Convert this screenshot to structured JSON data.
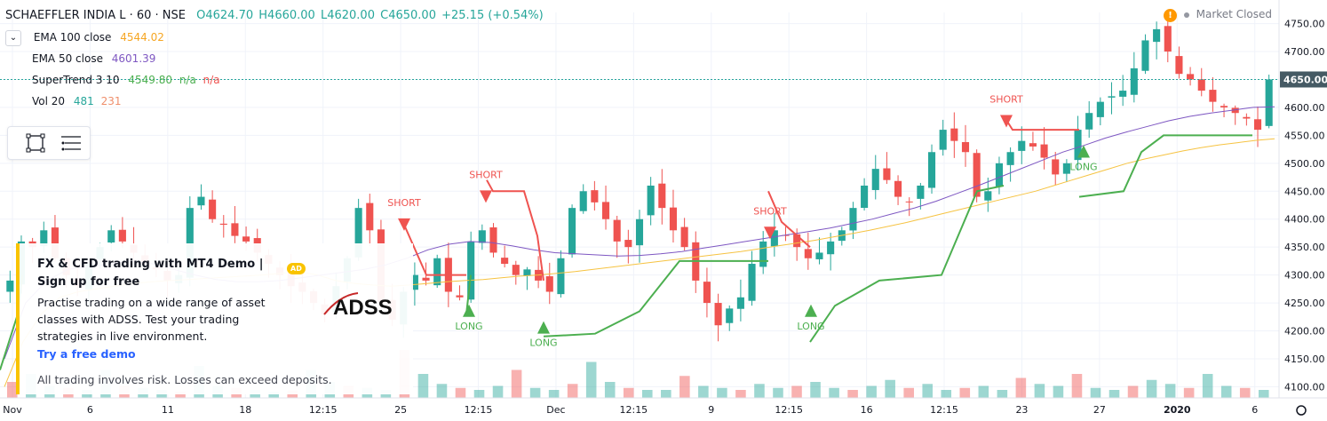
{
  "header": {
    "symbol": "SCHAEFFLER INDIA L · 60 · NSE",
    "open": "O4624.70",
    "high": "H4660.00",
    "low": "L4620.00",
    "close": "C4650.00",
    "change": "+25.15 (+0.54%)",
    "market_status": "Market Closed"
  },
  "indicators": [
    {
      "label": "EMA 100 close",
      "values": [
        "4544.02"
      ],
      "colors": [
        "#f6a623"
      ]
    },
    {
      "label": "EMA 50 close",
      "values": [
        "4601.39"
      ],
      "colors": [
        "#7e57c2"
      ]
    },
    {
      "label": "SuperTrend 3 10",
      "values": [
        "4549.80",
        "n/a",
        "n/a"
      ],
      "colors": [
        "#4caf50",
        "#4caf50",
        "#ef5350"
      ]
    },
    {
      "label": "Vol 20",
      "values": [
        "481",
        "231"
      ],
      "colors": [
        "#26a69a",
        "#ef8f6c"
      ]
    }
  ],
  "ad": {
    "headline": "FX & CFD trading with MT4 Demo | Sign up for free",
    "body": "Practise trading on a wide range of asset classes with ADSS. Test your trading strategies in live environment.",
    "cta": "Try a free demo",
    "disclaimer": "All trading involves risk. Losses can exceed deposits.",
    "badge": "AD",
    "brand": "ADSS"
  },
  "colors": {
    "up": "#26a69a",
    "down": "#ef5350",
    "ema100": "#f6c342",
    "ema50": "#7e57c2",
    "st_up": "#4caf50",
    "st_down": "#ef5350",
    "price_tag": "#455a64"
  },
  "chart_data": {
    "type": "candlestick",
    "y_ticks": [
      4100,
      4150,
      4200,
      4250,
      4300,
      4350,
      4400,
      4450,
      4500,
      4550,
      4600,
      4650,
      4700,
      4750
    ],
    "ylim": [
      4080,
      4770
    ],
    "x_ticks": [
      "Nov",
      "6",
      "11",
      "18",
      "12:15",
      "25",
      "12:15",
      "Dec",
      "12:15",
      "9",
      "12:15",
      "16",
      "12:15",
      "23",
      "27",
      "2020",
      "6"
    ],
    "last_price": "4650.00",
    "close_path": [
      4290,
      4360,
      4350,
      4380,
      4330,
      4300,
      4280,
      4320,
      4350,
      4380,
      4360,
      4340,
      4320,
      4310,
      4290,
      4300,
      4420,
      4440,
      4400,
      4390,
      4370,
      4360,
      4340,
      4320,
      4300,
      4280,
      4270,
      4250,
      4230,
      4280,
      4330,
      4420,
      4380,
      4250,
      4220,
      4270,
      4300,
      4290,
      4330,
      4270,
      4260,
      4360,
      4380,
      4340,
      4320,
      4300,
      4310,
      4290,
      4270,
      4330,
      4420,
      4450,
      4430,
      4400,
      4360,
      4350,
      4400,
      4460,
      4420,
      4380,
      4350,
      4290,
      4250,
      4210,
      4240,
      4260,
      4320,
      4360,
      4380,
      4370,
      4350,
      4330,
      4340,
      4360,
      4380,
      4420,
      4460,
      4490,
      4470,
      4440,
      4430,
      4460,
      4520,
      4560,
      4540,
      4520,
      4440,
      4450,
      4500,
      4520,
      4540,
      4530,
      4510,
      4480,
      4500,
      4560,
      4590,
      4610,
      4620,
      4630,
      4670,
      4720,
      4740,
      4700,
      4660,
      4650,
      4630,
      4610,
      4600,
      4590,
      4580,
      4560,
      4650
    ],
    "ema100_path": [
      4100,
      4180,
      4230,
      4260,
      4270,
      4275,
      4280,
      4285,
      4288,
      4290,
      4292,
      4294,
      4296,
      4298,
      4300,
      4303,
      4306,
      4300,
      4290,
      4285,
      4282,
      4280,
      4282,
      4285,
      4288,
      4290,
      4292,
      4295,
      4298,
      4300,
      4303,
      4306,
      4310,
      4314,
      4318,
      4322,
      4326,
      4330,
      4334,
      4338,
      4342,
      4347,
      4352,
      4357,
      4362,
      4368,
      4374,
      4380,
      4387,
      4394,
      4402,
      4410,
      4418,
      4426,
      4434,
      4442,
      4450,
      4460,
      4470,
      4480,
      4490,
      4500,
      4508,
      4515,
      4522,
      4528,
      4533,
      4537,
      4541,
      4544
    ],
    "ema50_path": [
      4150,
      4250,
      4290,
      4310,
      4315,
      4320,
      4325,
      4320,
      4310,
      4300,
      4292,
      4288,
      4288,
      4290,
      4295,
      4300,
      4305,
      4310,
      4318,
      4330,
      4345,
      4355,
      4360,
      4358,
      4352,
      4345,
      4340,
      4338,
      4336,
      4334,
      4335,
      4338,
      4342,
      4348,
      4354,
      4360,
      4366,
      4372,
      4378,
      4384,
      4392,
      4400,
      4410,
      4420,
      4432,
      4446,
      4460,
      4475,
      4490,
      4505,
      4520,
      4532,
      4545,
      4556,
      4566,
      4576,
      4584,
      4590,
      4595,
      4600,
      4601
    ],
    "volume_path": [
      40,
      60,
      30,
      25,
      20,
      70,
      30,
      25,
      20,
      15,
      80,
      30,
      25,
      20,
      15,
      18,
      70,
      40,
      30,
      25,
      20,
      120,
      60,
      35,
      25,
      20,
      30,
      70,
      25,
      20,
      35,
      90,
      40,
      25,
      20,
      20,
      55,
      30,
      25,
      20,
      35,
      25,
      30,
      40,
      25,
      20,
      30,
      45,
      25,
      35,
      20,
      25,
      30,
      20,
      50,
      35,
      30,
      60,
      25,
      20,
      30,
      45,
      35,
      25,
      60,
      30,
      25,
      20
    ],
    "annotations": [
      {
        "label": "SHORT",
        "type": "short"
      },
      {
        "label": "SHORT",
        "type": "short"
      },
      {
        "label": "SHORT",
        "type": "short"
      },
      {
        "label": "SHORT",
        "type": "short"
      },
      {
        "label": "LONG",
        "type": "long"
      },
      {
        "label": "LONG",
        "type": "long"
      },
      {
        "label": "LONG",
        "type": "long"
      },
      {
        "label": "LONG",
        "type": "long"
      }
    ]
  }
}
